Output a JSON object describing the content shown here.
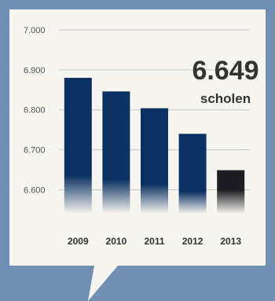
{
  "colors": {
    "background": "#6f8fb5",
    "card": "#f7f5ef",
    "bar": "#0a3163",
    "highlight_bar": "#1c1c22",
    "gridline": "#c9c9c9",
    "text": "#333333"
  },
  "callout": {
    "value": "6.649",
    "unit": "scholen"
  },
  "chart_data": {
    "type": "bar",
    "categories": [
      "2009",
      "2010",
      "2011",
      "2012",
      "2013"
    ],
    "values": [
      6880,
      6846,
      6804,
      6740,
      6649
    ],
    "highlight_index": 4,
    "yticks": [
      "7.000",
      "6.900",
      "6.800",
      "6.700",
      "6.600"
    ],
    "ytick_values": [
      7000,
      6900,
      6800,
      6700,
      6600
    ],
    "ylim": [
      6540,
      7000
    ],
    "title": "",
    "xlabel": "",
    "ylabel": "",
    "grid": true
  }
}
